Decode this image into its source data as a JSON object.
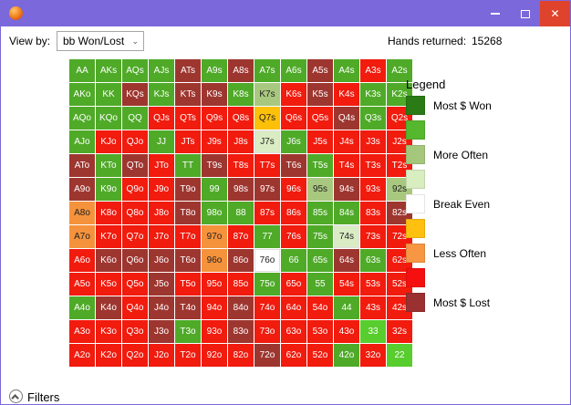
{
  "window": {
    "close_glyph": "✕"
  },
  "colors": {
    "titlebar": "#7b68da",
    "close_button": "#df432c"
  },
  "toolbar": {
    "view_by_label": "View by:",
    "view_by_value": "bb Won/Lost",
    "dropdown_chevron": "⌄",
    "hands_returned_label": "Hands returned:",
    "hands_returned_value": "15268"
  },
  "legend": {
    "title": "Legend",
    "items": [
      {
        "color": "#2a7a15",
        "label": "Most $ Won"
      },
      {
        "color": "#55b72e",
        "label": ""
      },
      {
        "color": "#a4c77c",
        "label": "More Often"
      },
      {
        "color": "#d8edc0",
        "label": ""
      },
      {
        "color": "#ffffff",
        "label": "Break Even"
      },
      {
        "color": "#ffc010",
        "label": ""
      },
      {
        "color": "#f79743",
        "label": "Less Often"
      },
      {
        "color": "#f50f0f",
        "label": ""
      },
      {
        "color": "#9a3030",
        "label": "Most $ Lost"
      }
    ]
  },
  "palette": {
    "g": "#4faa28",
    "bg": "#58cd2e",
    "lg": "#a9c87f",
    "vg": "#d9ecc3",
    "w": "#ffffff",
    "y": "#fdc008",
    "o": "#f5923c",
    "r": "#f11b0e",
    "dr": "#9e3630"
  },
  "dark_text_keys": [
    "w",
    "y",
    "o",
    "lg",
    "vg"
  ],
  "matrix": {
    "rows": [
      [
        [
          "AA",
          "g"
        ],
        [
          "AKs",
          "g"
        ],
        [
          "AQs",
          "g"
        ],
        [
          "AJs",
          "g"
        ],
        [
          "ATs",
          "dr"
        ],
        [
          "A9s",
          "g"
        ],
        [
          "A8s",
          "dr"
        ],
        [
          "A7s",
          "g"
        ],
        [
          "A6s",
          "g"
        ],
        [
          "A5s",
          "dr"
        ],
        [
          "A4s",
          "g"
        ],
        [
          "A3s",
          "r"
        ],
        [
          "A2s",
          "g"
        ]
      ],
      [
        [
          "AKo",
          "g"
        ],
        [
          "KK",
          "g"
        ],
        [
          "KQs",
          "dr"
        ],
        [
          "KJs",
          "g"
        ],
        [
          "KTs",
          "dr"
        ],
        [
          "K9s",
          "dr"
        ],
        [
          "K8s",
          "g"
        ],
        [
          "K7s",
          "lg"
        ],
        [
          "K6s",
          "r"
        ],
        [
          "K5s",
          "dr"
        ],
        [
          "K4s",
          "r"
        ],
        [
          "K3s",
          "g"
        ],
        [
          "K2s",
          "g"
        ]
      ],
      [
        [
          "AQo",
          "g"
        ],
        [
          "KQo",
          "g"
        ],
        [
          "QQ",
          "g"
        ],
        [
          "QJs",
          "r"
        ],
        [
          "QTs",
          "r"
        ],
        [
          "Q9s",
          "r"
        ],
        [
          "Q8s",
          "r"
        ],
        [
          "Q7s",
          "y"
        ],
        [
          "Q6s",
          "r"
        ],
        [
          "Q5s",
          "r"
        ],
        [
          "Q4s",
          "dr"
        ],
        [
          "Q3s",
          "g"
        ],
        [
          "Q2s",
          "r"
        ]
      ],
      [
        [
          "AJo",
          "g"
        ],
        [
          "KJo",
          "r"
        ],
        [
          "QJo",
          "r"
        ],
        [
          "JJ",
          "g"
        ],
        [
          "JTs",
          "r"
        ],
        [
          "J9s",
          "r"
        ],
        [
          "J8s",
          "r"
        ],
        [
          "J7s",
          "vg"
        ],
        [
          "J6s",
          "g"
        ],
        [
          "J5s",
          "r"
        ],
        [
          "J4s",
          "r"
        ],
        [
          "J3s",
          "r"
        ],
        [
          "J2s",
          "r"
        ]
      ],
      [
        [
          "ATo",
          "dr"
        ],
        [
          "KTo",
          "g"
        ],
        [
          "QTo",
          "dr"
        ],
        [
          "JTo",
          "r"
        ],
        [
          "TT",
          "g"
        ],
        [
          "T9s",
          "dr"
        ],
        [
          "T8s",
          "r"
        ],
        [
          "T7s",
          "r"
        ],
        [
          "T6s",
          "dr"
        ],
        [
          "T5s",
          "g"
        ],
        [
          "T4s",
          "r"
        ],
        [
          "T3s",
          "r"
        ],
        [
          "T2s",
          "r"
        ]
      ],
      [
        [
          "A9o",
          "dr"
        ],
        [
          "K9o",
          "g"
        ],
        [
          "Q9o",
          "r"
        ],
        [
          "J9o",
          "r"
        ],
        [
          "T9o",
          "dr"
        ],
        [
          "99",
          "g"
        ],
        [
          "98s",
          "dr"
        ],
        [
          "97s",
          "dr"
        ],
        [
          "96s",
          "r"
        ],
        [
          "95s",
          "lg"
        ],
        [
          "94s",
          "dr"
        ],
        [
          "93s",
          "r"
        ],
        [
          "92s",
          "lg"
        ]
      ],
      [
        [
          "A8o",
          "o"
        ],
        [
          "K8o",
          "r"
        ],
        [
          "Q8o",
          "r"
        ],
        [
          "J8o",
          "r"
        ],
        [
          "T8o",
          "dr"
        ],
        [
          "98o",
          "g"
        ],
        [
          "88",
          "g"
        ],
        [
          "87s",
          "r"
        ],
        [
          "86s",
          "r"
        ],
        [
          "85s",
          "g"
        ],
        [
          "84s",
          "g"
        ],
        [
          "83s",
          "r"
        ],
        [
          "82s",
          "dr"
        ]
      ],
      [
        [
          "A7o",
          "o"
        ],
        [
          "K7o",
          "r"
        ],
        [
          "Q7o",
          "r"
        ],
        [
          "J7o",
          "r"
        ],
        [
          "T7o",
          "r"
        ],
        [
          "97o",
          "o"
        ],
        [
          "87o",
          "r"
        ],
        [
          "77",
          "g"
        ],
        [
          "76s",
          "r"
        ],
        [
          "75s",
          "g"
        ],
        [
          "74s",
          "vg"
        ],
        [
          "73s",
          "r"
        ],
        [
          "72s",
          "r"
        ]
      ],
      [
        [
          "A6o",
          "r"
        ],
        [
          "K6o",
          "dr"
        ],
        [
          "Q6o",
          "dr"
        ],
        [
          "J6o",
          "dr"
        ],
        [
          "T6o",
          "dr"
        ],
        [
          "96o",
          "o"
        ],
        [
          "86o",
          "dr"
        ],
        [
          "76o",
          "w"
        ],
        [
          "66",
          "g"
        ],
        [
          "65s",
          "g"
        ],
        [
          "64s",
          "dr"
        ],
        [
          "63s",
          "g"
        ],
        [
          "62s",
          "r"
        ]
      ],
      [
        [
          "A5o",
          "r"
        ],
        [
          "K5o",
          "r"
        ],
        [
          "Q5o",
          "r"
        ],
        [
          "J5o",
          "dr"
        ],
        [
          "T5o",
          "r"
        ],
        [
          "95o",
          "r"
        ],
        [
          "85o",
          "r"
        ],
        [
          "75o",
          "g"
        ],
        [
          "65o",
          "r"
        ],
        [
          "55",
          "g"
        ],
        [
          "54s",
          "r"
        ],
        [
          "53s",
          "r"
        ],
        [
          "52s",
          "r"
        ]
      ],
      [
        [
          "A4o",
          "g"
        ],
        [
          "K4o",
          "dr"
        ],
        [
          "Q4o",
          "r"
        ],
        [
          "J4o",
          "dr"
        ],
        [
          "T4o",
          "dr"
        ],
        [
          "94o",
          "r"
        ],
        [
          "84o",
          "dr"
        ],
        [
          "74o",
          "r"
        ],
        [
          "64o",
          "r"
        ],
        [
          "54o",
          "r"
        ],
        [
          "44",
          "g"
        ],
        [
          "43s",
          "r"
        ],
        [
          "42s",
          "r"
        ]
      ],
      [
        [
          "A3o",
          "r"
        ],
        [
          "K3o",
          "r"
        ],
        [
          "Q3o",
          "r"
        ],
        [
          "J3o",
          "dr"
        ],
        [
          "T3o",
          "g"
        ],
        [
          "93o",
          "r"
        ],
        [
          "83o",
          "dr"
        ],
        [
          "73o",
          "r"
        ],
        [
          "63o",
          "r"
        ],
        [
          "53o",
          "r"
        ],
        [
          "43o",
          "r"
        ],
        [
          "33",
          "bg"
        ],
        [
          "32s",
          "r"
        ]
      ],
      [
        [
          "A2o",
          "r"
        ],
        [
          "K2o",
          "r"
        ],
        [
          "Q2o",
          "r"
        ],
        [
          "J2o",
          "r"
        ],
        [
          "T2o",
          "r"
        ],
        [
          "92o",
          "r"
        ],
        [
          "82o",
          "r"
        ],
        [
          "72o",
          "dr"
        ],
        [
          "62o",
          "r"
        ],
        [
          "52o",
          "r"
        ],
        [
          "42o",
          "g"
        ],
        [
          "32o",
          "r"
        ],
        [
          "22",
          "bg"
        ]
      ]
    ]
  },
  "filters": {
    "label": "Filters"
  }
}
